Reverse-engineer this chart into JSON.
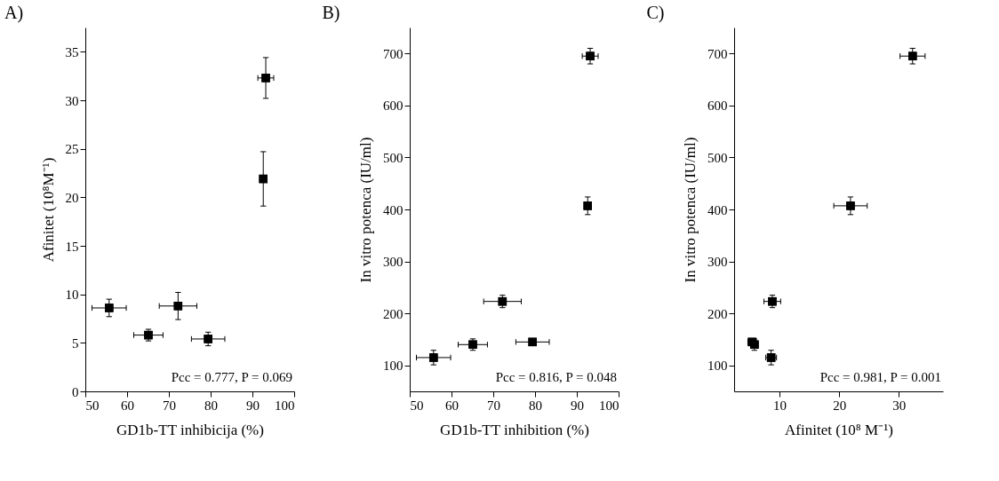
{
  "chart_data": [
    {
      "type": "scatter",
      "title": "A)",
      "xlabel": "GD1b-TT inhibicija (%)",
      "ylabel": "Afinitet (10⁸M⁻¹)",
      "x": [
        55.7,
        65.1,
        72.2,
        79.4,
        92.6,
        93.2
      ],
      "series": [
        {
          "color": "#000000",
          "values": [
            8.6,
            5.8,
            8.8,
            5.4,
            21.9,
            32.3
          ],
          "errors": [
            0.9,
            0.6,
            1.4,
            0.7,
            2.8,
            2.1
          ],
          "xerrors": [
            4.1,
            3.5,
            4.5,
            4.0,
            0.5,
            1.9
          ]
        }
      ],
      "xlim": [
        50,
        100
      ],
      "xticks": [
        50,
        60,
        70,
        80,
        90,
        100
      ],
      "ylim": [
        0,
        37.5
      ],
      "yticks": [
        0,
        5,
        10,
        15,
        20,
        25,
        30,
        35
      ],
      "annotations": [
        "Pcc = 0.777, P = 0.069"
      ],
      "marker": "square",
      "grid": false
    },
    {
      "type": "scatter",
      "title": "B)",
      "xlabel": "GD1b-TT inhibition (%)",
      "ylabel": "In vitro potenca (IU/ml)",
      "x": [
        55.7,
        65.1,
        72.2,
        79.4,
        92.6,
        93.2
      ],
      "series": [
        {
          "color": "#000000",
          "values": [
            115,
            140,
            223,
            145,
            407,
            695
          ],
          "errors": [
            14,
            11,
            12,
            6,
            17,
            15
          ],
          "xerrors": [
            4.1,
            3.5,
            4.5,
            4.0,
            0.5,
            1.9
          ]
        }
      ],
      "xlim": [
        50,
        100
      ],
      "xticks": [
        50,
        60,
        70,
        80,
        90,
        100
      ],
      "ylim": [
        50,
        750
      ],
      "yticks": [
        100,
        200,
        300,
        400,
        500,
        600,
        700
      ],
      "annotations": [
        "Pcc = 0.816, P = 0.048"
      ],
      "marker": "square",
      "grid": false
    },
    {
      "type": "scatter",
      "title": "C)",
      "xlabel": "Afinitet (10⁸ M⁻¹)",
      "ylabel": "In vitro potenca (IU/ml)",
      "x": [
        8.6,
        5.8,
        8.8,
        5.4,
        21.9,
        32.3
      ],
      "series": [
        {
          "color": "#000000",
          "values": [
            115,
            140,
            223,
            145,
            407,
            695
          ],
          "errors": [
            14,
            11,
            12,
            6,
            17,
            15
          ],
          "xerrors": [
            0.9,
            0.6,
            1.4,
            0.7,
            2.8,
            2.1
          ]
        }
      ],
      "xlim": [
        2.4,
        37.4
      ],
      "xticks": [
        10,
        20,
        30
      ],
      "ylim": [
        50,
        750
      ],
      "yticks": [
        100,
        200,
        300,
        400,
        500,
        600,
        700
      ],
      "annotations": [
        "Pcc = 0.981, P = 0.001"
      ],
      "marker": "square",
      "grid": false
    }
  ]
}
